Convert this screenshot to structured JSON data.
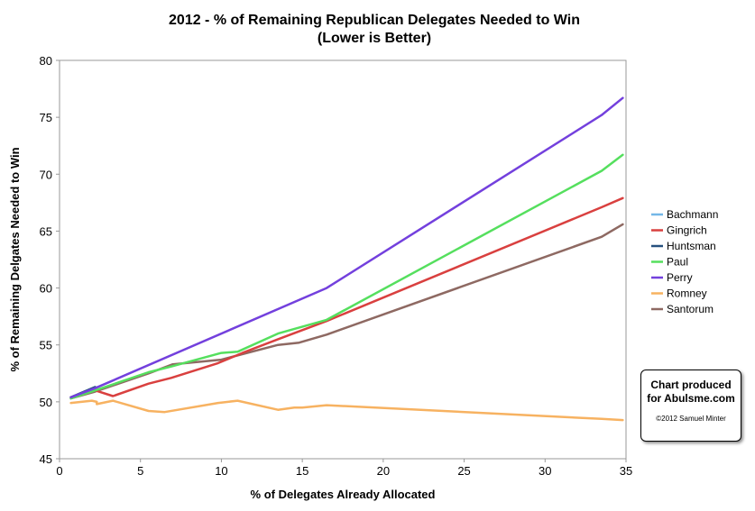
{
  "chart_data": {
    "type": "line",
    "title": "2012 - % of Remaining Republican Delegates Needed to Win",
    "subtitle": "(Lower is Better)",
    "xlabel": "% of Delegates Already Allocated",
    "ylabel": "% of Remaining Delgates Needed to Win",
    "xlim": [
      0,
      35
    ],
    "ylim": [
      45,
      80
    ],
    "xticks": [
      0,
      5,
      10,
      15,
      20,
      25,
      30,
      35
    ],
    "yticks": [
      45,
      50,
      55,
      60,
      65,
      70,
      75,
      80
    ],
    "grid": false,
    "legend_position": "right",
    "series": [
      {
        "name": "Bachmann",
        "color": "#74b7e7",
        "points": [
          [
            0.7,
            50.4
          ],
          [
            1.2,
            50.6
          ]
        ]
      },
      {
        "name": "Gingrich",
        "color": "#d9403f",
        "points": [
          [
            0.7,
            50.4
          ],
          [
            2.2,
            51.0
          ],
          [
            3.3,
            50.5
          ],
          [
            5.5,
            51.6
          ],
          [
            6.9,
            52.1
          ],
          [
            9.8,
            53.4
          ],
          [
            11.3,
            54.3
          ],
          [
            13.5,
            55.5
          ],
          [
            16.5,
            57.1
          ],
          [
            33.5,
            67.1
          ],
          [
            34.8,
            67.9
          ]
        ]
      },
      {
        "name": "Huntsman",
        "color": "#26507e",
        "points": [
          [
            0.7,
            50.4
          ],
          [
            2.2,
            51.3
          ]
        ]
      },
      {
        "name": "Paul",
        "color": "#55df5e",
        "points": [
          [
            0.7,
            50.3
          ],
          [
            2.2,
            51.0
          ],
          [
            5.5,
            52.6
          ],
          [
            6.9,
            53.1
          ],
          [
            10.0,
            54.3
          ],
          [
            11.0,
            54.4
          ],
          [
            13.5,
            56.0
          ],
          [
            16.5,
            57.2
          ],
          [
            33.5,
            70.3
          ],
          [
            34.8,
            71.7
          ]
        ]
      },
      {
        "name": "Perry",
        "color": "#7340dd",
        "points": [
          [
            0.7,
            50.4
          ],
          [
            2.2,
            51.2
          ],
          [
            16.5,
            60.0
          ],
          [
            33.5,
            75.2
          ],
          [
            34.8,
            76.7
          ]
        ]
      },
      {
        "name": "Romney",
        "color": "#f7b261",
        "points": [
          [
            0.7,
            49.9
          ],
          [
            2.0,
            50.1
          ],
          [
            2.3,
            50.0
          ],
          [
            2.3,
            49.8
          ],
          [
            3.3,
            50.1
          ],
          [
            5.5,
            49.2
          ],
          [
            6.5,
            49.1
          ],
          [
            9.8,
            49.9
          ],
          [
            11.0,
            50.1
          ],
          [
            13.5,
            49.3
          ],
          [
            14.5,
            49.5
          ],
          [
            15.0,
            49.5
          ],
          [
            16.5,
            49.7
          ],
          [
            33.5,
            48.5
          ],
          [
            34.8,
            48.4
          ]
        ]
      },
      {
        "name": "Santorum",
        "color": "#8e6962",
        "points": [
          [
            0.7,
            50.3
          ],
          [
            2.2,
            50.9
          ],
          [
            5.5,
            52.5
          ],
          [
            7.0,
            53.3
          ],
          [
            10.0,
            53.7
          ],
          [
            13.5,
            55.0
          ],
          [
            14.8,
            55.2
          ],
          [
            16.5,
            55.9
          ],
          [
            33.5,
            64.5
          ],
          [
            34.8,
            65.6
          ]
        ]
      }
    ]
  },
  "credit": {
    "line1": "Chart produced",
    "line2": "for Abulsme.com",
    "copyright": "©2012 Samuel Minter"
  }
}
